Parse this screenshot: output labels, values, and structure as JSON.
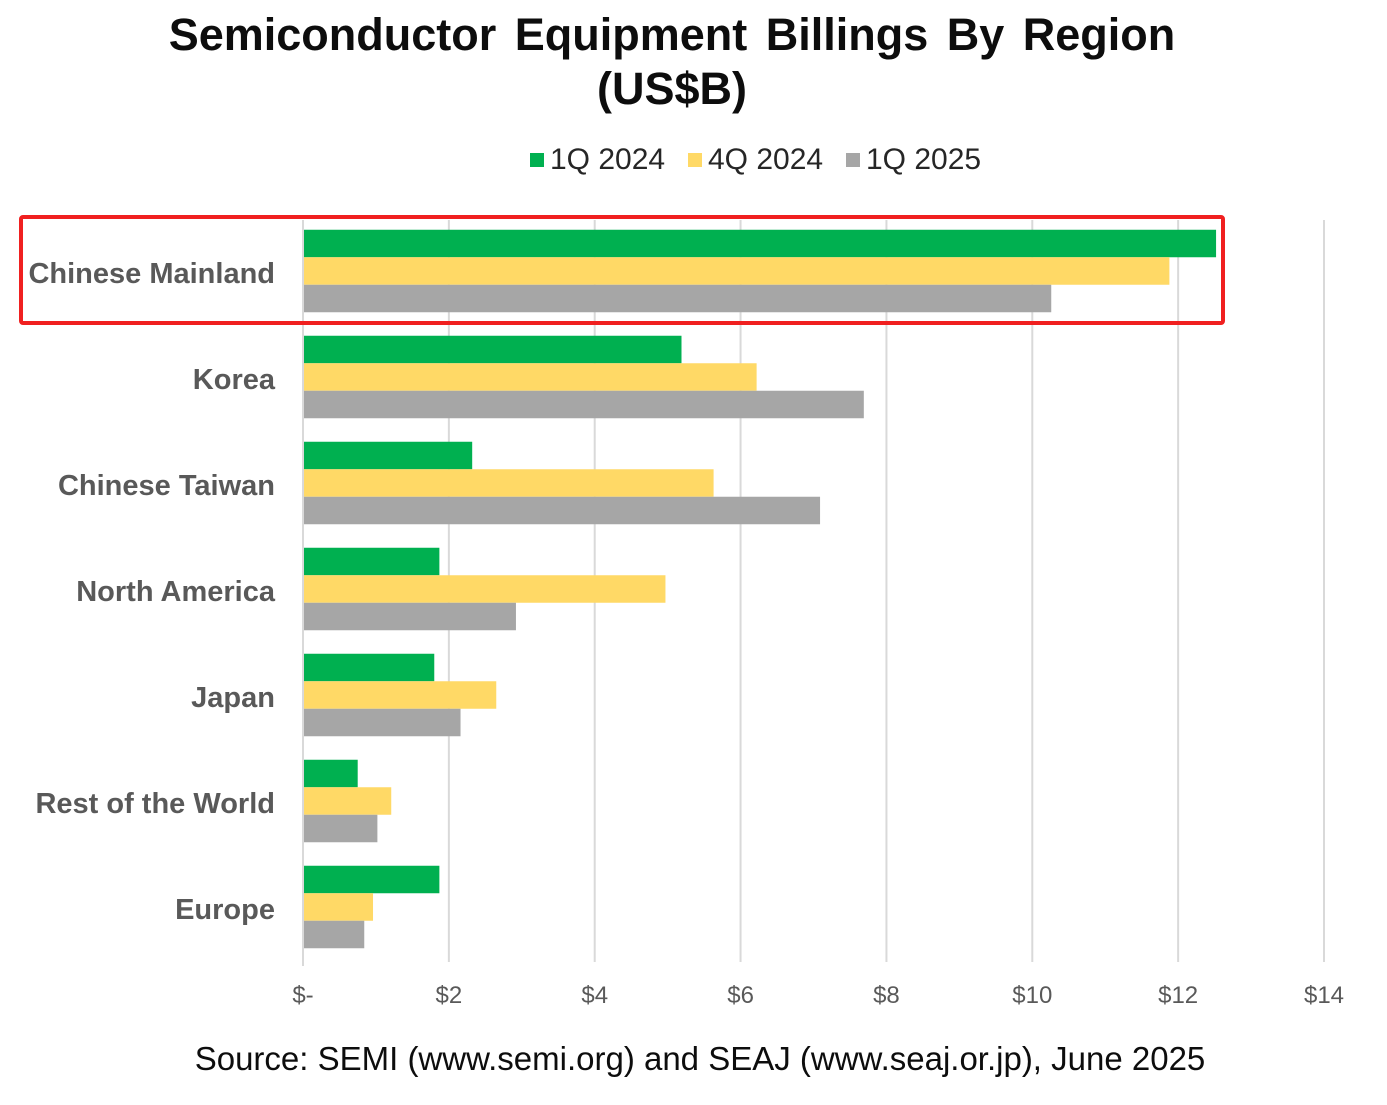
{
  "chart_data": {
    "type": "bar",
    "orientation": "horizontal",
    "title": "Semiconductor Equipment Billings By Region",
    "title_line2": "(US$B)",
    "categories": [
      "Chinese Mainland",
      "Korea",
      "Chinese Taiwan",
      "North America",
      "Japan",
      "Rest of the World",
      "Europe"
    ],
    "series": [
      {
        "name": "1Q 2024",
        "color": "#00b050",
        "values": [
          12.52,
          5.19,
          2.32,
          1.87,
          1.8,
          0.75,
          1.87
        ]
      },
      {
        "name": "4Q 2024",
        "color": "#ffd966",
        "values": [
          11.88,
          6.22,
          5.63,
          4.97,
          2.65,
          1.21,
          0.96
        ]
      },
      {
        "name": "1Q 2025",
        "color": "#a6a6a6",
        "values": [
          10.26,
          7.69,
          7.09,
          2.92,
          2.16,
          1.02,
          0.84
        ]
      }
    ],
    "xlim": [
      0,
      14
    ],
    "xticks": [
      0,
      2,
      4,
      6,
      8,
      10,
      12,
      14
    ],
    "xtick_labels": [
      "$-",
      "$2",
      "$4",
      "$6",
      "$8",
      "$10",
      "$12",
      "$14"
    ],
    "grid": true,
    "legend": "top-center",
    "highlighted_category": "Chinese Mainland",
    "source": "Source: SEMI (www.semi.org) and SEAJ (www.seaj.or.jp), June 2025"
  }
}
